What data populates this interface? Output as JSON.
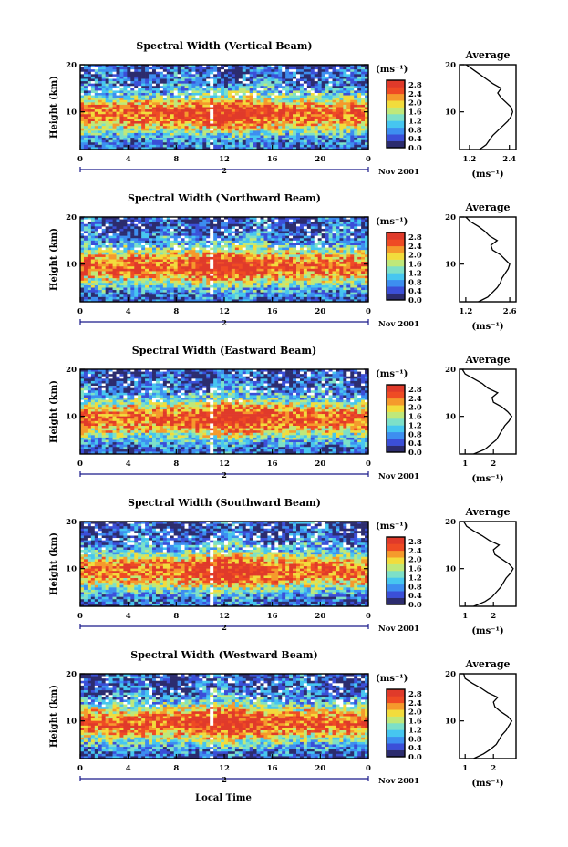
{
  "chart_data": {
    "type": "heatmap",
    "xlabel": "Local Time",
    "date_label": "Nov 2001",
    "day_marker": "2",
    "ylabel": "Height (km)",
    "x_ticks": [
      "0",
      "4",
      "8",
      "12",
      "16",
      "20",
      "0"
    ],
    "xlim": [
      0,
      24
    ],
    "y_ticks": [
      "10",
      "20"
    ],
    "ylim": [
      2,
      20
    ],
    "colorbar": {
      "unit_label": "(ms⁻¹)",
      "tick_labels": [
        "2.8",
        "2.4",
        "2.0",
        "1.6",
        "1.2",
        "0.8",
        "0.4",
        "0.0"
      ],
      "range": [
        0,
        3.0
      ],
      "colors": [
        "#2c2c6e",
        "#3b4fd8",
        "#3d8ef0",
        "#46c6f0",
        "#7de0c8",
        "#bfe87a",
        "#f2dc3c",
        "#f59a2c",
        "#ef4b24",
        "#e03a2a"
      ]
    },
    "panels": [
      {
        "title": "Spectral Width (Vertical Beam)",
        "average": {
          "title": "Average",
          "xlabel": "(ms⁻¹)",
          "x_ticks": [
            "1.2",
            "2.4"
          ],
          "xlim": [
            0.9,
            2.6
          ],
          "heights": [
            2,
            3,
            4,
            5,
            6,
            7,
            8,
            9,
            10,
            11,
            12,
            13,
            14,
            15,
            16,
            17,
            18,
            19,
            20
          ],
          "values": [
            1.5,
            1.7,
            1.8,
            1.9,
            2.05,
            2.2,
            2.35,
            2.45,
            2.5,
            2.45,
            2.3,
            2.15,
            2.05,
            2.15,
            1.9,
            1.7,
            1.5,
            1.3,
            1.1
          ]
        }
      },
      {
        "title": "Spectral Width (Northward Beam)",
        "average": {
          "title": "Average",
          "xlabel": "(ms⁻¹)",
          "x_ticks": [
            "1.2",
            "2.6"
          ],
          "xlim": [
            1.0,
            2.8
          ],
          "heights": [
            2,
            3,
            4,
            5,
            6,
            7,
            8,
            9,
            10,
            11,
            12,
            13,
            14,
            15,
            16,
            17,
            18,
            19,
            20
          ],
          "values": [
            1.6,
            1.9,
            2.05,
            2.2,
            2.3,
            2.35,
            2.45,
            2.55,
            2.6,
            2.45,
            2.3,
            2.05,
            2.0,
            2.2,
            1.95,
            1.8,
            1.6,
            1.35,
            1.2
          ]
        }
      },
      {
        "title": "Spectral Width (Eastward Beam)",
        "average": {
          "title": "Average",
          "xlabel": "(ms⁻¹)",
          "x_ticks": [
            "1",
            "2"
          ],
          "xlim": [
            0.8,
            2.8
          ],
          "heights": [
            2,
            3,
            4,
            5,
            6,
            7,
            8,
            9,
            10,
            11,
            12,
            13,
            14,
            15,
            16,
            17,
            18,
            19,
            20
          ],
          "values": [
            1.3,
            1.7,
            1.9,
            2.1,
            2.2,
            2.3,
            2.4,
            2.55,
            2.65,
            2.5,
            2.3,
            2.0,
            1.95,
            2.15,
            1.8,
            1.6,
            1.3,
            1.0,
            0.9
          ]
        }
      },
      {
        "title": "Spectral Width (Southward Beam)",
        "average": {
          "title": "Average",
          "xlabel": "(ms⁻¹)",
          "x_ticks": [
            "1",
            "2"
          ],
          "xlim": [
            0.8,
            2.8
          ],
          "heights": [
            2,
            3,
            4,
            5,
            6,
            7,
            8,
            9,
            10,
            11,
            12,
            13,
            14,
            15,
            16,
            17,
            18,
            19,
            20
          ],
          "values": [
            1.3,
            1.7,
            1.95,
            2.1,
            2.25,
            2.35,
            2.45,
            2.6,
            2.7,
            2.55,
            2.3,
            2.05,
            2.0,
            2.2,
            1.85,
            1.6,
            1.3,
            1.05,
            0.95
          ]
        }
      },
      {
        "title": "Spectral Width (Westward Beam)",
        "average": {
          "title": "Average",
          "xlabel": "(ms⁻¹)",
          "x_ticks": [
            "1",
            "2"
          ],
          "xlim": [
            0.8,
            2.8
          ],
          "heights": [
            2,
            3,
            4,
            5,
            6,
            7,
            8,
            9,
            10,
            11,
            12,
            13,
            14,
            15,
            16,
            17,
            18,
            19,
            20
          ],
          "values": [
            1.3,
            1.65,
            1.9,
            2.1,
            2.2,
            2.3,
            2.45,
            2.55,
            2.65,
            2.5,
            2.25,
            2.05,
            2.0,
            2.15,
            1.8,
            1.55,
            1.25,
            1.0,
            0.95
          ]
        }
      }
    ]
  }
}
